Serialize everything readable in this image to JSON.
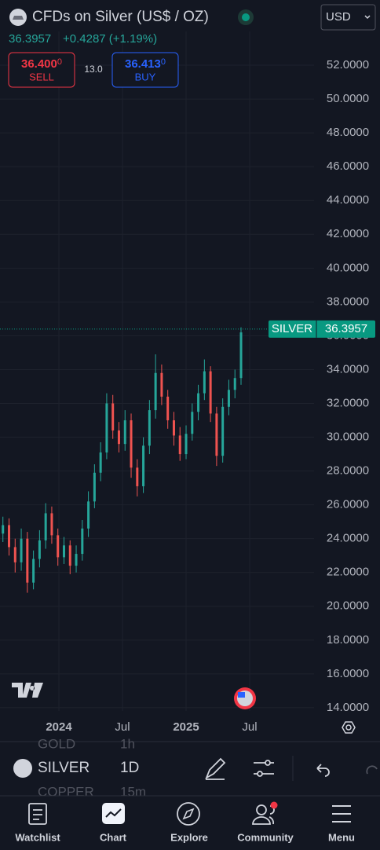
{
  "header": {
    "title": "CFDs on Silver (US$ / OZ)",
    "currency": "USD",
    "price": "36.3957",
    "change": "+0.4287 (+1.19%)",
    "sell": {
      "price": "36.400",
      "pip": "0",
      "label": "SELL"
    },
    "spread": "13.0",
    "buy": {
      "price": "36.413",
      "pip": "0",
      "label": "BUY"
    }
  },
  "chart_data": {
    "type": "candlestick",
    "x": [
      2023.56,
      2023.608,
      2023.656,
      2023.704,
      2023.752,
      2023.8,
      2023.848,
      2023.896,
      2023.944,
      2023.992,
      2024.04,
      2024.088,
      2024.136,
      2024.184,
      2024.232,
      2024.28,
      2024.328,
      2024.376,
      2024.424,
      2024.472,
      2024.52,
      2024.568,
      2024.616,
      2024.664,
      2024.712,
      2024.76,
      2024.808,
      2024.856,
      2024.904,
      2024.952,
      2025.0,
      2025.048,
      2025.096,
      2025.144,
      2025.192,
      2025.24,
      2025.288,
      2025.336,
      2025.384,
      2025.432
    ],
    "open": [
      24.3,
      24.8,
      23.5,
      22.6,
      24.0,
      21.4,
      22.8,
      23.9,
      25.5,
      24.2,
      22.9,
      23.6,
      22.4,
      23.1,
      24.6,
      26.2,
      27.9,
      29.1,
      32.0,
      30.4,
      29.6,
      31.0,
      28.2,
      27.1,
      29.5,
      31.6,
      33.8,
      32.4,
      31.0,
      30.1,
      29.0,
      30.2,
      31.5,
      32.6,
      33.9,
      31.4,
      28.9,
      31.8,
      32.8,
      33.5
    ],
    "high": [
      25.3,
      25.2,
      24.0,
      24.6,
      24.4,
      23.3,
      24.5,
      26.1,
      25.9,
      24.6,
      24.1,
      23.9,
      23.6,
      25.1,
      26.8,
      28.4,
      29.7,
      32.6,
      32.5,
      30.9,
      31.6,
      31.4,
      28.7,
      30.0,
      32.2,
      34.9,
      34.3,
      32.8,
      31.5,
      30.6,
      30.7,
      32.0,
      33.1,
      34.6,
      34.2,
      31.8,
      32.3,
      33.4,
      34.0,
      36.5
    ],
    "low": [
      23.8,
      23.0,
      22.0,
      22.1,
      20.8,
      21.0,
      22.3,
      23.4,
      23.7,
      22.4,
      22.5,
      21.9,
      22.0,
      22.7,
      24.1,
      25.8,
      27.4,
      28.7,
      29.9,
      29.1,
      29.2,
      27.6,
      26.5,
      26.7,
      29.0,
      31.1,
      31.9,
      30.5,
      29.5,
      28.6,
      28.7,
      29.8,
      31.0,
      32.2,
      30.9,
      28.3,
      28.5,
      31.3,
      32.3,
      33.1
    ],
    "close": [
      24.8,
      23.5,
      22.6,
      24.0,
      21.4,
      22.8,
      23.9,
      25.5,
      24.2,
      22.9,
      23.6,
      22.4,
      23.1,
      24.6,
      26.2,
      27.9,
      29.1,
      32.0,
      30.4,
      29.6,
      31.0,
      28.2,
      27.1,
      29.5,
      31.6,
      33.8,
      32.4,
      31.0,
      30.1,
      29.0,
      30.2,
      31.5,
      32.6,
      33.9,
      31.4,
      28.9,
      31.8,
      32.8,
      33.5,
      36.2
    ],
    "up_color": "#26a69a",
    "down_color": "#ef5350",
    "xlim": [
      2023.537,
      2026.006
    ],
    "xticks": [
      {
        "value": 2024,
        "label": "2024"
      },
      {
        "value": 2024.5,
        "label": "Jul"
      },
      {
        "value": 2025,
        "label": "2025"
      },
      {
        "value": 2025.5,
        "label": "Jul"
      }
    ],
    "ylim": [
      13.81,
      54.0
    ],
    "yticks": [
      {
        "value": 14,
        "label": "14.0000"
      },
      {
        "value": 16,
        "label": "16.0000"
      },
      {
        "value": 18,
        "label": "18.0000"
      },
      {
        "value": 20,
        "label": "20.0000"
      },
      {
        "value": 22,
        "label": "22.0000"
      },
      {
        "value": 24,
        "label": "24.0000"
      },
      {
        "value": 26,
        "label": "26.0000"
      },
      {
        "value": 28,
        "label": "28.0000"
      },
      {
        "value": 30,
        "label": "30.0000"
      },
      {
        "value": 32,
        "label": "32.0000"
      },
      {
        "value": 34,
        "label": "34.0000"
      },
      {
        "value": 36,
        "label": "36.0000"
      },
      {
        "value": 38,
        "label": "38.0000"
      },
      {
        "value": 40,
        "label": "40.0000"
      },
      {
        "value": 42,
        "label": "42.0000"
      },
      {
        "value": 44,
        "label": "44.0000"
      },
      {
        "value": 46,
        "label": "46.0000"
      },
      {
        "value": 48,
        "label": "48.0000"
      },
      {
        "value": 50,
        "label": "50.0000"
      },
      {
        "value": 52,
        "label": "52.0000"
      }
    ],
    "grid": true,
    "last_price": {
      "name": "SILVER",
      "value": 36.3957,
      "color": "#089981"
    }
  },
  "toolbar": {
    "symbol": "SILVER",
    "interval": "1D",
    "prev_symbol": "GOLD",
    "prev_interval": "1h",
    "next_symbol": "COPPER",
    "next_interval": "15m"
  },
  "nav": {
    "items": [
      "Watchlist",
      "Chart",
      "Explore",
      "Community",
      "Menu"
    ]
  }
}
